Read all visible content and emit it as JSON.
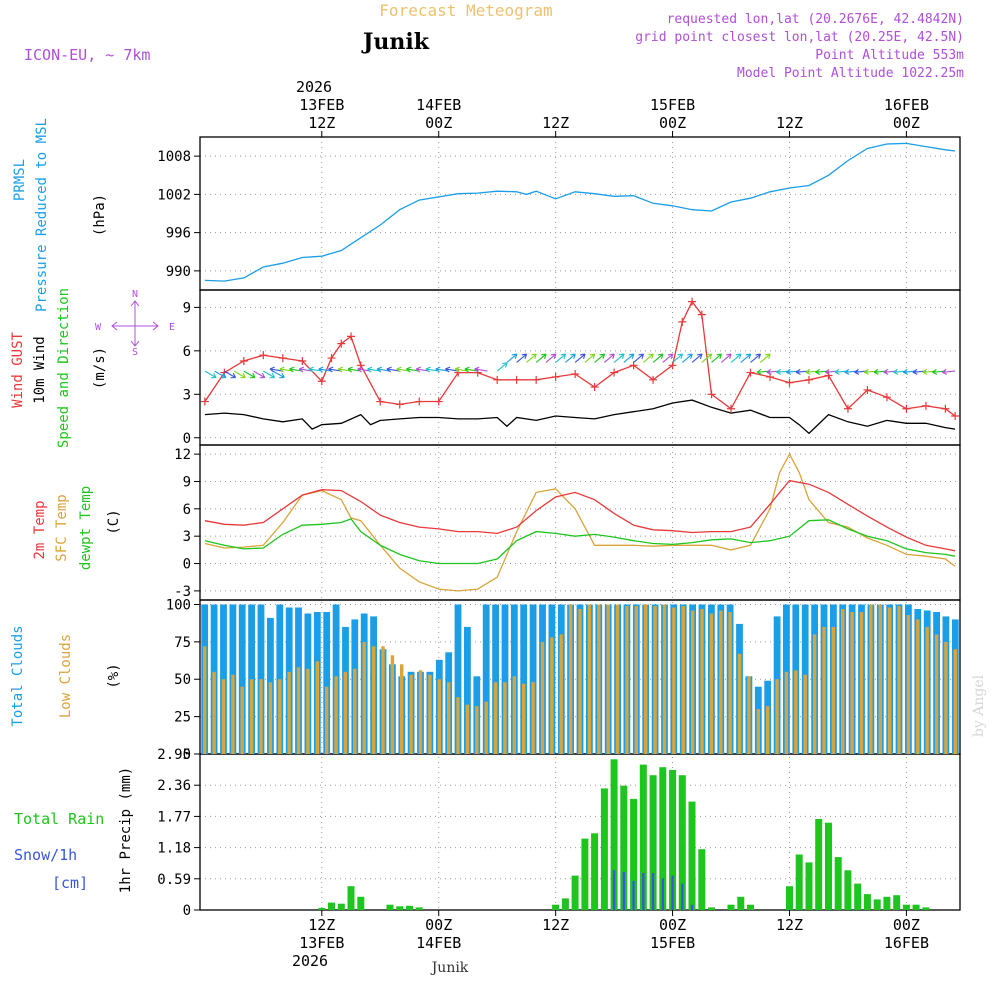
{
  "colors": {
    "purple": "#b04fd8",
    "blue": "#1a9ee8",
    "red": "#e8383a",
    "green": "#1ec51e",
    "gold": "#d9a43a",
    "black": "#000000",
    "watermark": "#d6d6d6",
    "title_faint": "#f0c070"
  },
  "header": {
    "faint_title": "Forecast Meteogram",
    "location": "Junik",
    "model": "ICON-EU, ~ 7km",
    "info_lines": [
      "requested lon,lat (20.2676E, 42.4842N)",
      "grid point closest lon,lat (20.25E, 42.5N)",
      "Point Altitude 553m",
      "Model Point Altitude 1022.25m"
    ]
  },
  "time_axis": {
    "top_year": "2026",
    "ticks": [
      {
        "h": 12,
        "hour": "12Z",
        "date": "13FEB"
      },
      {
        "h": 24,
        "hour": "00Z",
        "date": "14FEB"
      },
      {
        "h": 36,
        "hour": "12Z",
        "date": ""
      },
      {
        "h": 48,
        "hour": "00Z",
        "date": "15FEB"
      },
      {
        "h": 60,
        "hour": "12Z",
        "date": ""
      },
      {
        "h": 72,
        "hour": "00Z",
        "date": "16FEB"
      }
    ],
    "bottom_year": "2026",
    "footer_location": "Junik"
  },
  "watermark": "by Angel",
  "panels": {
    "pressure": {
      "label1": "PRMSL",
      "label2": "Pressure Reduced to MSL",
      "units": "(hPa)"
    },
    "wind": {
      "label_red": "Wind GUST",
      "label_black": "10m Wind",
      "label_green": "Speed and Direction",
      "units": "(m/s)",
      "compass_n": "N",
      "compass_s": "S",
      "compass_w": "W",
      "compass_e": "E"
    },
    "temp": {
      "label_red": "2m Temp",
      "label_gold": "SFC Temp",
      "label_green": "dewpt Temp",
      "units": "(C)"
    },
    "clouds": {
      "label_blue": "Total Clouds",
      "label_gold": "Low Clouds",
      "units": "(%)"
    },
    "precip": {
      "label_green": "Total Rain",
      "label_blue": "Snow/1h",
      "label_blue2": "[cm]",
      "units": "1hr Precip (mm)"
    }
  },
  "chart_data": [
    {
      "type": "line",
      "name": "pressure",
      "title": "PRMSL Pressure Reduced to MSL",
      "ylabel": "(hPa)",
      "ylim": [
        987,
        1011
      ],
      "yticks": [
        990,
        996,
        1002,
        1008
      ],
      "series": [
        {
          "name": "PRMSL",
          "color": "#1a9ee8",
          "x": [
            0,
            2,
            4,
            6,
            8,
            10,
            12,
            14,
            16,
            18,
            20,
            22,
            24,
            26,
            28,
            30,
            32,
            33,
            34,
            36,
            38,
            40,
            42,
            44,
            46,
            48,
            50,
            52,
            54,
            56,
            58,
            60,
            62,
            64,
            66,
            68,
            70,
            72,
            74,
            76,
            77
          ],
          "y": [
            988.5,
            988.4,
            988.9,
            990.6,
            991.2,
            992.1,
            992.3,
            993.2,
            995.2,
            997.2,
            999.6,
            1001.1,
            1001.6,
            1002.1,
            1002.2,
            1002.5,
            1002.4,
            1002.0,
            1002.5,
            1001.3,
            1002.4,
            1002.1,
            1001.7,
            1001.8,
            1000.6,
            1000.2,
            999.6,
            999.4,
            1000.8,
            1001.4,
            1002.4,
            1003.0,
            1003.4,
            1005.0,
            1007.3,
            1009.2,
            1009.9,
            1010.0,
            1009.5,
            1009.0,
            1008.8
          ]
        }
      ]
    },
    {
      "type": "line",
      "name": "wind",
      "title": "Wind GUST / 10m Wind Speed and Direction",
      "ylabel": "(m/s)",
      "ylim": [
        -0.5,
        10.2
      ],
      "yticks": [
        0,
        3,
        6,
        9
      ],
      "series": [
        {
          "name": "Wind GUST",
          "color": "#e8383a",
          "marker": "+",
          "x": [
            0,
            2,
            4,
            6,
            8,
            10,
            12,
            13,
            14,
            15,
            16,
            18,
            20,
            22,
            24,
            26,
            28,
            30,
            32,
            34,
            36,
            38,
            40,
            42,
            44,
            46,
            48,
            49,
            50,
            51,
            52,
            54,
            56,
            58,
            60,
            62,
            64,
            66,
            68,
            70,
            72,
            74,
            76,
            77
          ],
          "y": [
            2.5,
            4.5,
            5.3,
            5.7,
            5.5,
            5.3,
            3.9,
            5.5,
            6.5,
            7.0,
            5.0,
            2.5,
            2.3,
            2.5,
            2.5,
            4.5,
            4.5,
            4.0,
            4.0,
            4.0,
            4.2,
            4.4,
            3.5,
            4.5,
            5.0,
            4.0,
            5.0,
            8.0,
            9.4,
            8.5,
            3.0,
            2.0,
            4.5,
            4.2,
            3.8,
            4.0,
            4.3,
            2.0,
            3.3,
            2.8,
            2.0,
            2.2,
            2.0,
            1.5
          ]
        },
        {
          "name": "10m Wind",
          "color": "#000000",
          "x": [
            0,
            2,
            4,
            6,
            8,
            10,
            11,
            12,
            14,
            16,
            17,
            18,
            20,
            22,
            24,
            26,
            28,
            30,
            31,
            32,
            34,
            36,
            38,
            40,
            42,
            44,
            46,
            48,
            50,
            52,
            54,
            56,
            58,
            60,
            61,
            62,
            64,
            66,
            68,
            70,
            72,
            74,
            76,
            77
          ],
          "y": [
            1.6,
            1.7,
            1.6,
            1.3,
            1.1,
            1.3,
            0.6,
            0.9,
            1.0,
            1.6,
            0.9,
            1.2,
            1.3,
            1.4,
            1.4,
            1.3,
            1.3,
            1.4,
            0.8,
            1.4,
            1.2,
            1.5,
            1.4,
            1.3,
            1.6,
            1.8,
            2.0,
            2.4,
            2.6,
            2.1,
            1.7,
            1.9,
            1.4,
            1.4,
            0.9,
            0.3,
            1.6,
            1.1,
            0.8,
            1.2,
            1.0,
            1.0,
            0.7,
            0.6
          ]
        }
      ]
    },
    {
      "type": "line",
      "name": "temperature",
      "title": "2m Temp / SFC Temp / dewpt Temp",
      "ylabel": "(C)",
      "ylim": [
        -4,
        13
      ],
      "yticks": [
        -3,
        0,
        3,
        6,
        9,
        12
      ],
      "series": [
        {
          "name": "2m Temp",
          "color": "#e8383a",
          "x": [
            0,
            2,
            4,
            6,
            8,
            10,
            12,
            14,
            16,
            18,
            20,
            22,
            24,
            26,
            28,
            30,
            32,
            34,
            36,
            38,
            40,
            42,
            44,
            46,
            48,
            50,
            52,
            54,
            56,
            58,
            60,
            62,
            64,
            66,
            68,
            70,
            72,
            74,
            76,
            77
          ],
          "y": [
            4.7,
            4.3,
            4.2,
            4.5,
            6.0,
            7.5,
            8.1,
            8.0,
            6.8,
            5.3,
            4.5,
            4.0,
            3.8,
            3.5,
            3.5,
            3.3,
            4.0,
            5.8,
            7.3,
            7.8,
            7.0,
            5.5,
            4.2,
            3.7,
            3.6,
            3.4,
            3.5,
            3.5,
            4.0,
            6.5,
            9.1,
            8.7,
            7.8,
            6.5,
            5.2,
            4.0,
            2.9,
            2.0,
            1.6,
            1.4
          ]
        },
        {
          "name": "SFC Temp",
          "color": "#d9a43a",
          "x": [
            0,
            2,
            4,
            6,
            8,
            10,
            12,
            14,
            15,
            16,
            18,
            20,
            22,
            24,
            26,
            28,
            30,
            32,
            34,
            36,
            38,
            40,
            42,
            44,
            46,
            48,
            50,
            52,
            54,
            56,
            58,
            59,
            60,
            61,
            62,
            64,
            66,
            68,
            70,
            72,
            74,
            76,
            77
          ],
          "y": [
            2.2,
            1.7,
            1.8,
            2.0,
            4.5,
            7.5,
            8.0,
            7.0,
            5.0,
            4.7,
            2.0,
            -0.5,
            -2.0,
            -2.8,
            -3.0,
            -2.8,
            -1.5,
            3.5,
            7.8,
            8.2,
            6.0,
            2.0,
            2.0,
            2.0,
            1.9,
            2.0,
            2.0,
            2.0,
            1.5,
            2.0,
            6.0,
            10.0,
            12.0,
            10.0,
            7.0,
            4.5,
            4.0,
            2.8,
            2.0,
            1.0,
            0.8,
            0.5,
            -0.3
          ]
        },
        {
          "name": "dewpt Temp",
          "color": "#1ec51e",
          "x": [
            0,
            2,
            4,
            6,
            8,
            10,
            12,
            14,
            15,
            16,
            18,
            20,
            22,
            24,
            26,
            28,
            30,
            32,
            34,
            36,
            38,
            40,
            42,
            44,
            46,
            48,
            50,
            52,
            54,
            56,
            58,
            60,
            62,
            64,
            66,
            68,
            70,
            72,
            74,
            76,
            77
          ],
          "y": [
            2.5,
            2.0,
            1.6,
            1.7,
            3.2,
            4.2,
            4.3,
            4.5,
            4.9,
            3.5,
            2.0,
            1.0,
            0.3,
            0.0,
            0.0,
            0.0,
            0.5,
            2.5,
            3.5,
            3.3,
            3.0,
            3.2,
            2.9,
            2.5,
            2.2,
            2.1,
            2.3,
            2.6,
            2.7,
            2.3,
            2.5,
            3.0,
            4.7,
            4.8,
            3.8,
            3.0,
            2.5,
            1.6,
            1.2,
            1.0,
            0.8
          ]
        }
      ]
    },
    {
      "type": "bar",
      "name": "clouds",
      "title": "Total Clouds / Low Clouds",
      "ylabel": "(%)",
      "ylim": [
        0,
        103
      ],
      "yticks": [
        0,
        25,
        50,
        75,
        100
      ],
      "series": [
        {
          "name": "Total Clouds",
          "color": "#1a9ee8",
          "values": [
            100,
            100,
            100,
            100,
            100,
            100,
            100,
            91,
            100,
            98,
            98,
            94,
            95,
            95,
            100,
            85,
            90,
            94,
            92,
            70,
            60,
            52,
            55,
            55,
            55,
            63,
            68,
            100,
            85,
            52,
            100,
            100,
            100,
            100,
            100,
            100,
            100,
            100,
            100,
            100,
            100,
            100,
            100,
            100,
            100,
            100,
            100,
            100,
            100,
            100,
            100,
            100,
            100,
            100,
            100,
            100,
            100,
            87,
            52,
            45,
            49,
            92,
            100,
            100,
            100,
            100,
            100,
            100,
            100,
            100,
            100,
            100,
            100,
            100,
            100,
            100,
            97,
            96,
            95,
            92,
            90
          ]
        },
        {
          "name": "Low Clouds",
          "color": "#d9a43a",
          "values": [
            72,
            55,
            50,
            53,
            45,
            50,
            50,
            48,
            50,
            55,
            58,
            57,
            62,
            45,
            52,
            55,
            57,
            75,
            72,
            72,
            66,
            60,
            53,
            56,
            53,
            50,
            48,
            38,
            33,
            32,
            35,
            48,
            48,
            52,
            47,
            48,
            75,
            78,
            80,
            100,
            97,
            100,
            100,
            100,
            100,
            99,
            99,
            100,
            99,
            100,
            98,
            99,
            96,
            97,
            94,
            96,
            95,
            67,
            52,
            30,
            32,
            50,
            55,
            56,
            53,
            80,
            85,
            85,
            97,
            95,
            95,
            100,
            100,
            98,
            99,
            93,
            90,
            85,
            80,
            75,
            70
          ]
        }
      ]
    },
    {
      "type": "bar",
      "name": "precipitation",
      "title": "1hr Precip (mm)",
      "ylabel": "1hr Precip (mm)",
      "ylim": [
        0,
        2.95
      ],
      "yticks": [
        0,
        0.59,
        1.18,
        1.77,
        2.36,
        2.95
      ],
      "series": [
        {
          "name": "Total Rain",
          "color": "#1ec51e",
          "x": [
            12,
            13,
            14,
            15,
            16,
            19,
            20,
            21,
            22,
            36,
            37,
            38,
            39,
            40,
            41,
            42,
            43,
            44,
            45,
            46,
            47,
            48,
            49,
            50,
            51,
            52,
            54,
            55,
            56,
            60,
            61,
            62,
            63,
            64,
            65,
            66,
            67,
            68,
            69,
            70,
            71,
            72,
            73,
            74
          ],
          "y": [
            0.04,
            0.14,
            0.12,
            0.45,
            0.25,
            0.1,
            0.07,
            0.08,
            0.05,
            0.1,
            0.22,
            0.65,
            1.35,
            1.45,
            2.3,
            2.85,
            2.35,
            2.1,
            2.75,
            2.55,
            2.7,
            2.65,
            2.55,
            2.05,
            1.15,
            0.05,
            0.1,
            0.25,
            0.1,
            0.45,
            1.05,
            0.9,
            1.72,
            1.65,
            1.0,
            0.75,
            0.5,
            0.3,
            0.2,
            0.25,
            0.28,
            0.1,
            0.1,
            0.05
          ]
        },
        {
          "name": "Snow/1h",
          "color": "#3a55e0",
          "x": [
            42,
            43,
            44,
            45,
            46,
            47,
            48,
            49,
            50
          ],
          "y": [
            0.75,
            0.72,
            0.55,
            0.7,
            0.7,
            0.6,
            0.65,
            0.5,
            0.1
          ]
        }
      ]
    }
  ]
}
